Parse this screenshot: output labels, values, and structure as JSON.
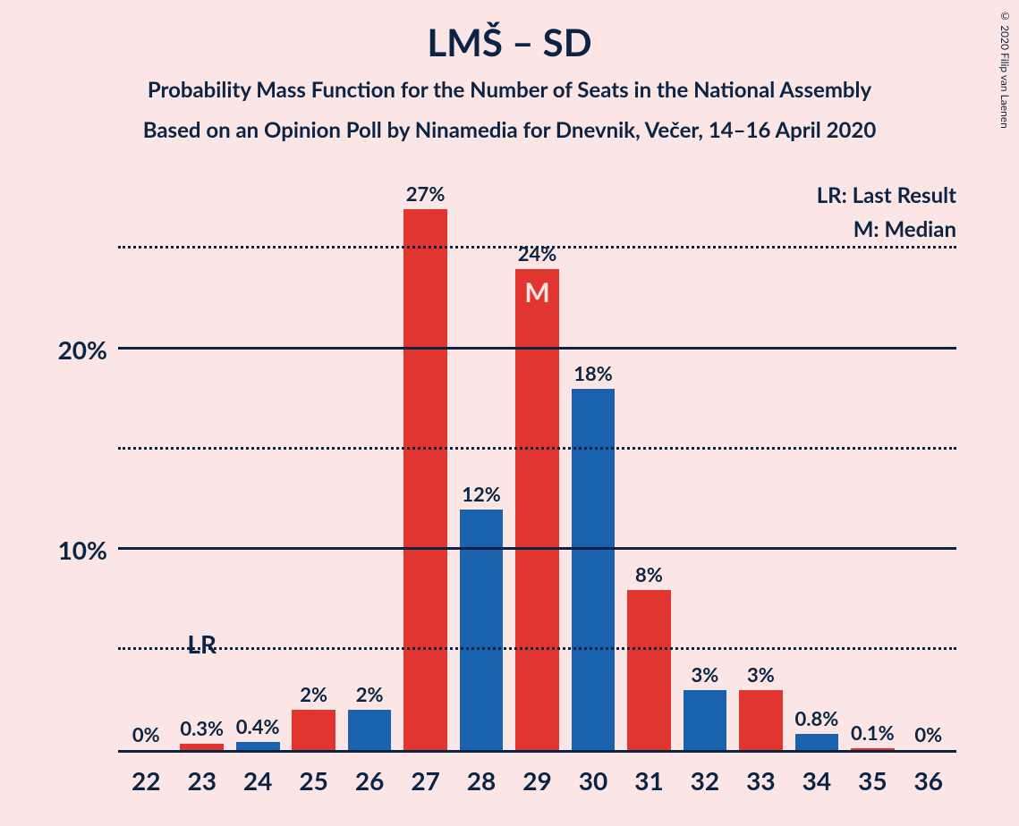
{
  "title": "LMŠ – SD",
  "subtitle1": "Probability Mass Function for the Number of Seats in the National Assembly",
  "subtitle2": "Based on an Opinion Poll by Ninamedia for Dnevnik, Večer, 14–16 April 2020",
  "copyright": "© 2020 Filip van Laenen",
  "legend": {
    "lr": "LR: Last Result",
    "m": "M: Median"
  },
  "chart": {
    "type": "bar",
    "colors": {
      "red": "#e1352f",
      "blue": "#1a62ae",
      "text": "#0c2443",
      "bg": "#fce5e5"
    },
    "ylim_max": 28.5,
    "y_major_ticks": [
      10,
      20
    ],
    "y_minor_ticks": [
      5,
      15,
      25
    ],
    "categories": [
      "22",
      "23",
      "24",
      "25",
      "26",
      "27",
      "28",
      "29",
      "30",
      "31",
      "32",
      "33",
      "34",
      "35",
      "36"
    ],
    "bars": [
      {
        "value": 0,
        "label": "0%",
        "color": "blue"
      },
      {
        "value": 0.3,
        "label": "0.3%",
        "color": "red",
        "lr": true
      },
      {
        "value": 0.4,
        "label": "0.4%",
        "color": "blue"
      },
      {
        "value": 2,
        "label": "2%",
        "color": "red"
      },
      {
        "value": 2,
        "label": "2%",
        "color": "blue"
      },
      {
        "value": 27,
        "label": "27%",
        "color": "red"
      },
      {
        "value": 12,
        "label": "12%",
        "color": "blue"
      },
      {
        "value": 24,
        "label": "24%",
        "color": "red",
        "median": true
      },
      {
        "value": 18,
        "label": "18%",
        "color": "blue"
      },
      {
        "value": 8,
        "label": "8%",
        "color": "red"
      },
      {
        "value": 3,
        "label": "3%",
        "color": "blue"
      },
      {
        "value": 3,
        "label": "3%",
        "color": "red"
      },
      {
        "value": 0.8,
        "label": "0.8%",
        "color": "blue"
      },
      {
        "value": 0.1,
        "label": "0.1%",
        "color": "red"
      },
      {
        "value": 0,
        "label": "0%",
        "color": "blue"
      }
    ],
    "lr_text": "LR",
    "median_text": "M",
    "lr_label_bottom_pct": 16
  }
}
